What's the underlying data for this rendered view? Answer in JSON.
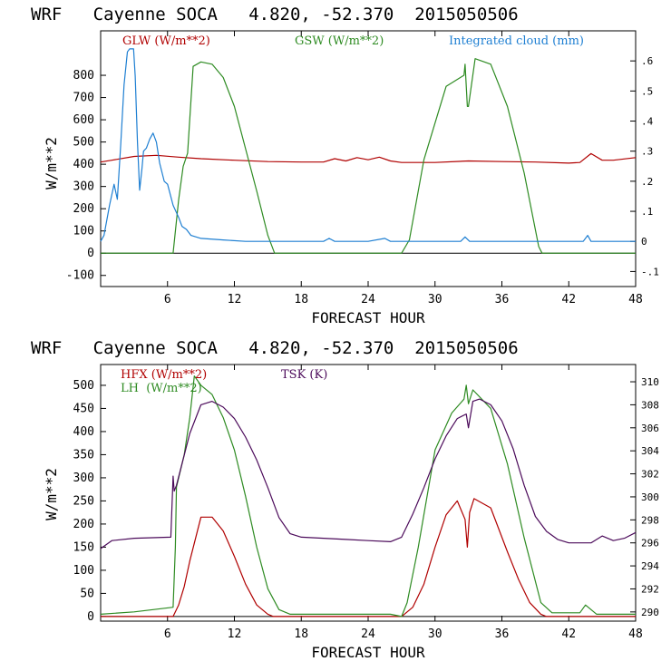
{
  "chart_data": [
    {
      "type": "line",
      "title": "WRF   Cayenne SOCA   4.820, -52.370  2015050506",
      "xlabel": "FORECAST HOUR",
      "ylabel": "W/m**2",
      "xlim": [
        0,
        48
      ],
      "ylim": [
        -150,
        1000
      ],
      "y2lim": [
        -0.15,
        0.7
      ],
      "xticks": [
        6,
        12,
        18,
        24,
        30,
        36,
        42,
        48
      ],
      "yticks": [
        -100,
        0,
        100,
        200,
        300,
        400,
        500,
        600,
        700,
        800
      ],
      "y2ticks": [
        -0.1,
        0,
        0.1,
        0.2,
        0.3,
        0.4,
        0.5,
        0.6
      ],
      "y2ticklabels": [
        "-.1",
        "0",
        ".1",
        ".2",
        ".3",
        ".4",
        ".5",
        ".6"
      ],
      "series": [
        {
          "name": "GLW (W/m**2)",
          "axis": "left",
          "color": "#b00000",
          "x": [
            0,
            1,
            3,
            5,
            7,
            9,
            12,
            15,
            18,
            20,
            21,
            22,
            23,
            24,
            25,
            26,
            27,
            30,
            33,
            36,
            39,
            42,
            43,
            44,
            45,
            46,
            48
          ],
          "y": [
            410,
            418,
            435,
            440,
            432,
            425,
            418,
            412,
            410,
            410,
            425,
            415,
            430,
            420,
            432,
            415,
            408,
            408,
            415,
            412,
            410,
            405,
            408,
            448,
            418,
            418,
            430
          ]
        },
        {
          "name": "GSW (W/m**2)",
          "axis": "left",
          "color": "#2e8b22",
          "x": [
            0,
            6.5,
            7,
            7.4,
            7.8,
            8.3,
            9,
            10,
            11,
            12,
            13,
            14,
            15,
            15.6,
            16,
            27,
            27.7,
            29,
            31,
            32.6,
            32.7,
            32.9,
            33.0,
            33.6,
            35,
            36.5,
            38,
            39.3,
            39.6,
            48
          ],
          "y": [
            0,
            0,
            240,
            390,
            450,
            840,
            860,
            850,
            790,
            660,
            470,
            280,
            80,
            0,
            0,
            0,
            60,
            420,
            750,
            800,
            850,
            660,
            660,
            875,
            850,
            660,
            360,
            30,
            0,
            0
          ]
        },
        {
          "name": "Integrated cloud (mm)",
          "axis": "right",
          "color": "#1e7fd2",
          "x": [
            0,
            0.3,
            0.8,
            1.2,
            1.5,
            1.8,
            2.1,
            2.4,
            2.6,
            2.8,
            2.95,
            3.1,
            3.3,
            3.5,
            3.7,
            3.85,
            4.1,
            4.4,
            4.7,
            5.0,
            5.3,
            5.7,
            6.0,
            6.5,
            7.0,
            7.3,
            7.7,
            8.1,
            9.0,
            11,
            13,
            20,
            20.5,
            21,
            24,
            25.5,
            26,
            32.3,
            32.7,
            33.1,
            43.3,
            43.7,
            44,
            48
          ],
          "y": [
            0,
            0.02,
            0.12,
            0.19,
            0.14,
            0.32,
            0.52,
            0.63,
            0.64,
            0.64,
            0.64,
            0.55,
            0.33,
            0.17,
            0.24,
            0.3,
            0.31,
            0.34,
            0.36,
            0.33,
            0.26,
            0.2,
            0.19,
            0.12,
            0.08,
            0.05,
            0.04,
            0.02,
            0.01,
            0.005,
            0,
            0,
            0.01,
            0,
            0,
            0.01,
            0,
            0,
            0.015,
            0,
            0,
            0.02,
            0,
            0
          ]
        }
      ],
      "legend": [
        {
          "label": "GLW (W/m**2)",
          "color": "#b00000"
        },
        {
          "label": "GSW (W/m**2)",
          "color": "#2e8b22"
        },
        {
          "label": "Integrated cloud (mm)",
          "color": "#1e7fd2"
        }
      ]
    },
    {
      "type": "line",
      "title": "WRF   Cayenne SOCA   4.820, -52.370  2015050506",
      "xlabel": "FORECAST HOUR",
      "ylabel": "W/m**2",
      "xlim": [
        0,
        48
      ],
      "ylim": [
        -10,
        545
      ],
      "y2lim": [
        289.2,
        311.5
      ],
      "xticks": [
        6,
        12,
        18,
        24,
        30,
        36,
        42,
        48
      ],
      "yticks": [
        0,
        50,
        100,
        150,
        200,
        250,
        300,
        350,
        400,
        450,
        500
      ],
      "y2ticks": [
        290,
        292,
        294,
        296,
        298,
        300,
        302,
        304,
        306,
        308,
        310
      ],
      "y2ticklabels": [
        "290",
        "292",
        "294",
        "296",
        "298",
        "300",
        "302",
        "304",
        "306",
        "308",
        "310"
      ],
      "series": [
        {
          "name": "HFX (W/m**2)",
          "axis": "left",
          "color": "#b00000",
          "x": [
            0,
            6.5,
            7,
            7.5,
            8,
            9,
            10,
            11,
            12,
            13,
            14,
            15,
            15.5,
            16,
            27,
            28,
            29,
            30,
            31,
            32,
            32.7,
            32.9,
            33.1,
            33.5,
            35,
            36.5,
            37.5,
            38.5,
            39.5,
            40,
            48
          ],
          "y": [
            0,
            0,
            25,
            65,
            120,
            215,
            215,
            185,
            130,
            70,
            25,
            5,
            0,
            0,
            0,
            20,
            70,
            150,
            220,
            250,
            210,
            150,
            225,
            255,
            235,
            140,
            80,
            30,
            5,
            0,
            0
          ]
        },
        {
          "name": "LH (W/m**2)",
          "axis": "left",
          "color": "#2e8b22",
          "x": [
            0,
            3,
            6.5,
            6.7,
            6.8,
            7.5,
            8,
            8.4,
            9,
            10,
            11,
            12,
            13,
            14,
            15,
            16,
            17,
            26,
            27,
            27.5,
            28.5,
            30,
            31.5,
            32.6,
            32.8,
            33,
            33.4,
            35,
            36.5,
            38,
            39.5,
            40.5,
            43,
            43.5,
            44.5,
            48
          ],
          "y": [
            5,
            10,
            20,
            150,
            280,
            350,
            430,
            520,
            500,
            480,
            430,
            360,
            260,
            150,
            60,
            15,
            5,
            5,
            0,
            30,
            150,
            360,
            440,
            470,
            500,
            460,
            490,
            450,
            330,
            170,
            30,
            8,
            8,
            25,
            5,
            5
          ]
        },
        {
          "name": "TSK (K)",
          "axis": "right",
          "color": "#4b0a5a",
          "x": [
            0,
            1,
            3,
            6.3,
            6.5,
            6.6,
            6.8,
            7.2,
            8,
            9,
            10,
            11,
            12,
            13,
            14,
            15,
            16,
            17,
            18,
            20,
            22,
            24,
            26,
            27,
            28,
            29,
            30,
            31,
            32,
            32.8,
            33,
            33.4,
            34,
            35,
            36,
            37,
            38,
            39,
            40,
            41,
            42,
            44,
            45,
            46,
            47,
            48
          ],
          "y": [
            295.5,
            296.2,
            296.4,
            296.5,
            301.8,
            300.5,
            301,
            302.5,
            305.5,
            308.0,
            308.3,
            307.8,
            306.8,
            305.2,
            303.2,
            300.8,
            298.2,
            296.8,
            296.5,
            296.4,
            296.3,
            296.2,
            296.1,
            296.5,
            298.5,
            300.8,
            303.3,
            305.3,
            306.8,
            307.2,
            306.0,
            308.3,
            308.5,
            308.0,
            306.6,
            304.2,
            301.0,
            298.3,
            297.0,
            296.3,
            296.0,
            296.0,
            296.6,
            296.2,
            296.4,
            296.9
          ]
        }
      ],
      "legend": [
        {
          "label": "HFX (W/m**2)",
          "color": "#b00000"
        },
        {
          "label": "LH  (W/m**2)",
          "color": "#2e8b22"
        },
        {
          "label": "TSK (K)",
          "color": "#4b0a5a"
        }
      ]
    }
  ]
}
